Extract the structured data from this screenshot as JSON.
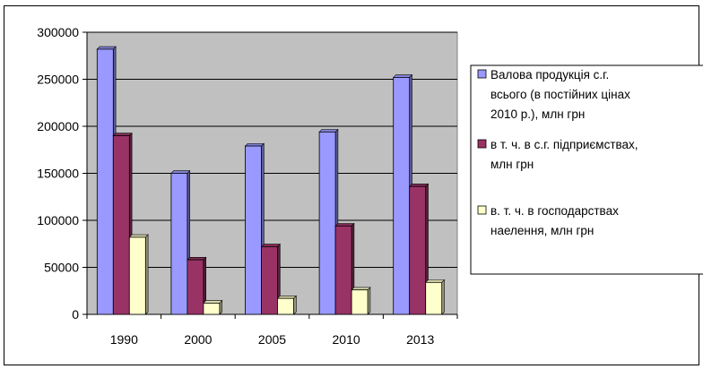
{
  "chart_data": {
    "type": "bar",
    "title": "",
    "xlabel": "",
    "ylabel": "",
    "categories": [
      "1990",
      "2000",
      "2005",
      "2010",
      "2013"
    ],
    "ylim": [
      0,
      300000
    ],
    "yticks": [
      "0",
      "50000",
      "100000",
      "150000",
      "200000",
      "250000",
      "300000"
    ],
    "grid": true,
    "legend_position": "right",
    "plot_background": "#c0c0c0",
    "series": [
      {
        "name_lines": [
          "Валова продукція с.г.",
          "всього (в постійних цінах",
          "2010 р.), млн грн"
        ],
        "color": "#9999ff",
        "values": [
          282000,
          150000,
          179000,
          194000,
          252000
        ]
      },
      {
        "name_lines": [
          "в т. ч. в с.г. підприємствах,",
          "млн грн"
        ],
        "color": "#993366",
        "values": [
          190000,
          58000,
          72000,
          94000,
          136000
        ]
      },
      {
        "name_lines": [
          "в. т. ч. в господарствах",
          "наелення, млн грн"
        ],
        "color": "#ffffcc",
        "values": [
          82000,
          12000,
          17000,
          26000,
          34000
        ]
      }
    ]
  }
}
